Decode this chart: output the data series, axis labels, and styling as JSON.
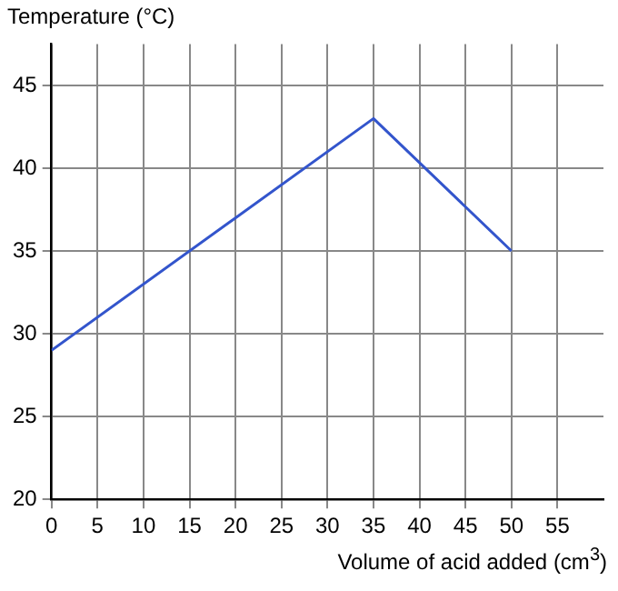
{
  "chart_data": {
    "type": "line",
    "ylabel": "Temperature (°C)",
    "xlabel": "Volume of acid added (cm$^{3}$)",
    "x": [
      0,
      35,
      50
    ],
    "series": [
      {
        "color": "#3355cc",
        "values": [
          29,
          43,
          35
        ]
      }
    ],
    "xlim": [
      0,
      60
    ],
    "xticks": [
      0,
      5,
      10,
      15,
      20,
      25,
      30,
      35,
      40,
      45,
      50,
      55
    ],
    "ylim": [
      20,
      47.5
    ],
    "yticks": [
      20,
      25,
      30,
      35,
      40,
      45
    ],
    "grid": true,
    "legend": false,
    "marker": "none",
    "line_style": "solid"
  }
}
